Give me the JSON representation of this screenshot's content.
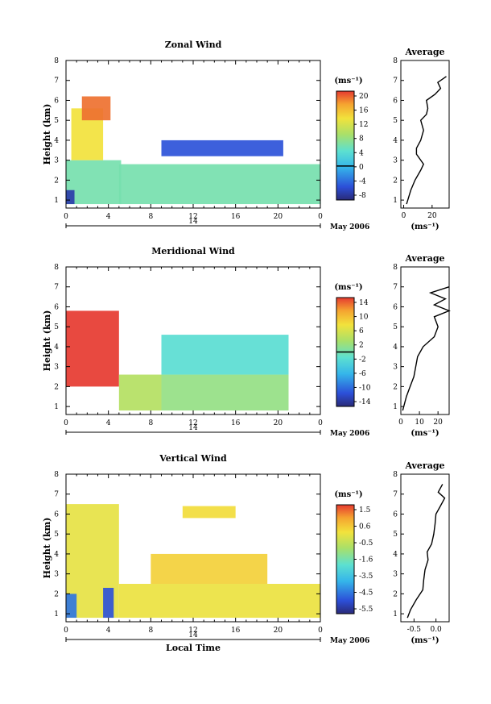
{
  "chart_data": [
    {
      "type": "heatmap",
      "title": "Zonal Wind",
      "ylabel": "Height (km)",
      "xlabel": "",
      "x_ticks": [
        "0",
        "4",
        "8",
        "12",
        "16",
        "20",
        "0"
      ],
      "xlim": [
        0,
        24
      ],
      "ylim": [
        0.6,
        8
      ],
      "y_ticks": [
        "1",
        "2",
        "3",
        "4",
        "5",
        "6",
        "7",
        "8"
      ],
      "date_axis": {
        "label": "14",
        "month": "May 2006"
      },
      "colorbar": {
        "unit": "(ms⁻¹)",
        "ticks": [
          "20",
          "16",
          "12",
          "8",
          "4",
          "0",
          "-4",
          "-8"
        ],
        "range": [
          -10,
          22
        ],
        "zero_line": 0
      },
      "regions": [
        {
          "x": [
            0,
            5.2
          ],
          "y": [
            0.8,
            3.0
          ],
          "value": 6
        },
        {
          "x": [
            0.5,
            3.5
          ],
          "y": [
            3.0,
            5.6
          ],
          "value": 14
        },
        {
          "x": [
            1.5,
            4.2
          ],
          "y": [
            5.0,
            6.2
          ],
          "value": 20
        },
        {
          "x": [
            5.0,
            24.0
          ],
          "y": [
            0.8,
            2.8
          ],
          "value": 6
        },
        {
          "x": [
            9.0,
            20.5
          ],
          "y": [
            3.2,
            4.0
          ],
          "value": -6
        },
        {
          "x": [
            0,
            0.8
          ],
          "y": [
            0.8,
            1.5
          ],
          "value": -8
        }
      ],
      "inset": {
        "title": "Average",
        "xlabel": "(ms⁻¹)",
        "x_ticks": [
          "0",
          "20"
        ],
        "xlim": [
          -2,
          32
        ],
        "y": [
          0.8,
          1.5,
          2.0,
          2.5,
          2.8,
          3.0,
          3.3,
          3.6,
          4.0,
          4.5,
          5.0,
          5.3,
          5.6,
          6.0,
          6.3,
          6.6,
          6.9,
          7.2
        ],
        "x": [
          2,
          5,
          8,
          12,
          14,
          12,
          9,
          9,
          12,
          14,
          12,
          16,
          17,
          16,
          22,
          26,
          24,
          30
        ]
      }
    },
    {
      "type": "heatmap",
      "title": "Meridional Wind",
      "ylabel": "Height (km)",
      "xlabel": "",
      "x_ticks": [
        "0",
        "4",
        "8",
        "12",
        "16",
        "20",
        "0"
      ],
      "xlim": [
        0,
        24
      ],
      "ylim": [
        0.6,
        8
      ],
      "y_ticks": [
        "1",
        "2",
        "3",
        "4",
        "5",
        "6",
        "7",
        "8"
      ],
      "date_axis": {
        "label": "14",
        "month": "May 2006"
      },
      "colorbar": {
        "unit": "(ms⁻¹)",
        "ticks": [
          "14",
          "10",
          "6",
          "2",
          "-2",
          "-6",
          "-10",
          "-14"
        ],
        "range": [
          -16,
          16
        ],
        "zero_line": 0
      },
      "regions": [
        {
          "x": [
            0,
            5.0
          ],
          "y": [
            2.0,
            5.8
          ],
          "value": 16
        },
        {
          "x": [
            5.0,
            9.0
          ],
          "y": [
            0.8,
            2.6
          ],
          "value": 4
        },
        {
          "x": [
            9.0,
            21.0
          ],
          "y": [
            0.8,
            2.6
          ],
          "value": 2
        },
        {
          "x": [
            9.0,
            21.0
          ],
          "y": [
            2.6,
            4.6
          ],
          "value": -2
        }
      ],
      "inset": {
        "title": "Average",
        "xlabel": "(ms⁻¹)",
        "x_ticks": [
          "0",
          "10",
          "20"
        ],
        "xlim": [
          0,
          26
        ],
        "y": [
          0.8,
          1.5,
          2.0,
          2.5,
          3.0,
          3.5,
          4.0,
          4.5,
          5.0,
          5.5,
          5.8,
          6.1,
          6.4,
          6.7,
          7.0
        ],
        "x": [
          1,
          3,
          5,
          7,
          8,
          9,
          12,
          18,
          20,
          18,
          26,
          18,
          24,
          16,
          26
        ]
      }
    },
    {
      "type": "heatmap",
      "title": "Vertical Wind",
      "ylabel": "Height (km)",
      "xlabel": "Local Time",
      "x_ticks": [
        "0",
        "4",
        "8",
        "12",
        "16",
        "20",
        "0"
      ],
      "xlim": [
        0,
        24
      ],
      "ylim": [
        0.6,
        8
      ],
      "y_ticks": [
        "1",
        "2",
        "3",
        "4",
        "5",
        "6",
        "7",
        "8"
      ],
      "date_axis": {
        "label": "14",
        "month": "May 2006"
      },
      "colorbar": {
        "unit": "(ms⁻¹)",
        "ticks": [
          "1.5",
          "0.6",
          "-0.5",
          "-1.6",
          "-3.5",
          "-4.5",
          "-5.5"
        ],
        "range": [
          -6,
          2
        ],
        "zero_line": null
      },
      "regions": [
        {
          "x": [
            0,
            5.0
          ],
          "y": [
            0.8,
            6.5
          ],
          "value": -0.2
        },
        {
          "x": [
            3.5,
            4.5
          ],
          "y": [
            0.8,
            2.3
          ],
          "value": -5.0
        },
        {
          "x": [
            0,
            1.0
          ],
          "y": [
            0.8,
            2.0
          ],
          "value": -4.5
        },
        {
          "x": [
            5.0,
            24.0
          ],
          "y": [
            0.8,
            2.5
          ],
          "value": -0.1
        },
        {
          "x": [
            8.0,
            19.0
          ],
          "y": [
            2.5,
            4.0
          ],
          "value": 0.3
        },
        {
          "x": [
            11.0,
            16.0
          ],
          "y": [
            5.8,
            6.4
          ],
          "value": 0.1
        }
      ],
      "inset": {
        "title": "Average",
        "xlabel": "(ms⁻¹)",
        "x_ticks": [
          "-0.5",
          "0.0"
        ],
        "xlim": [
          -0.8,
          0.3
        ],
        "y": [
          0.8,
          1.2,
          1.7,
          2.2,
          2.7,
          3.2,
          3.7,
          4.1,
          4.5,
          5.0,
          5.5,
          6.0,
          6.4,
          6.8,
          7.1,
          7.5
        ],
        "x": [
          -0.65,
          -0.58,
          -0.45,
          -0.3,
          -0.28,
          -0.25,
          -0.18,
          -0.2,
          -0.1,
          -0.05,
          -0.02,
          0.0,
          0.1,
          0.2,
          0.05,
          0.15
        ]
      }
    }
  ]
}
